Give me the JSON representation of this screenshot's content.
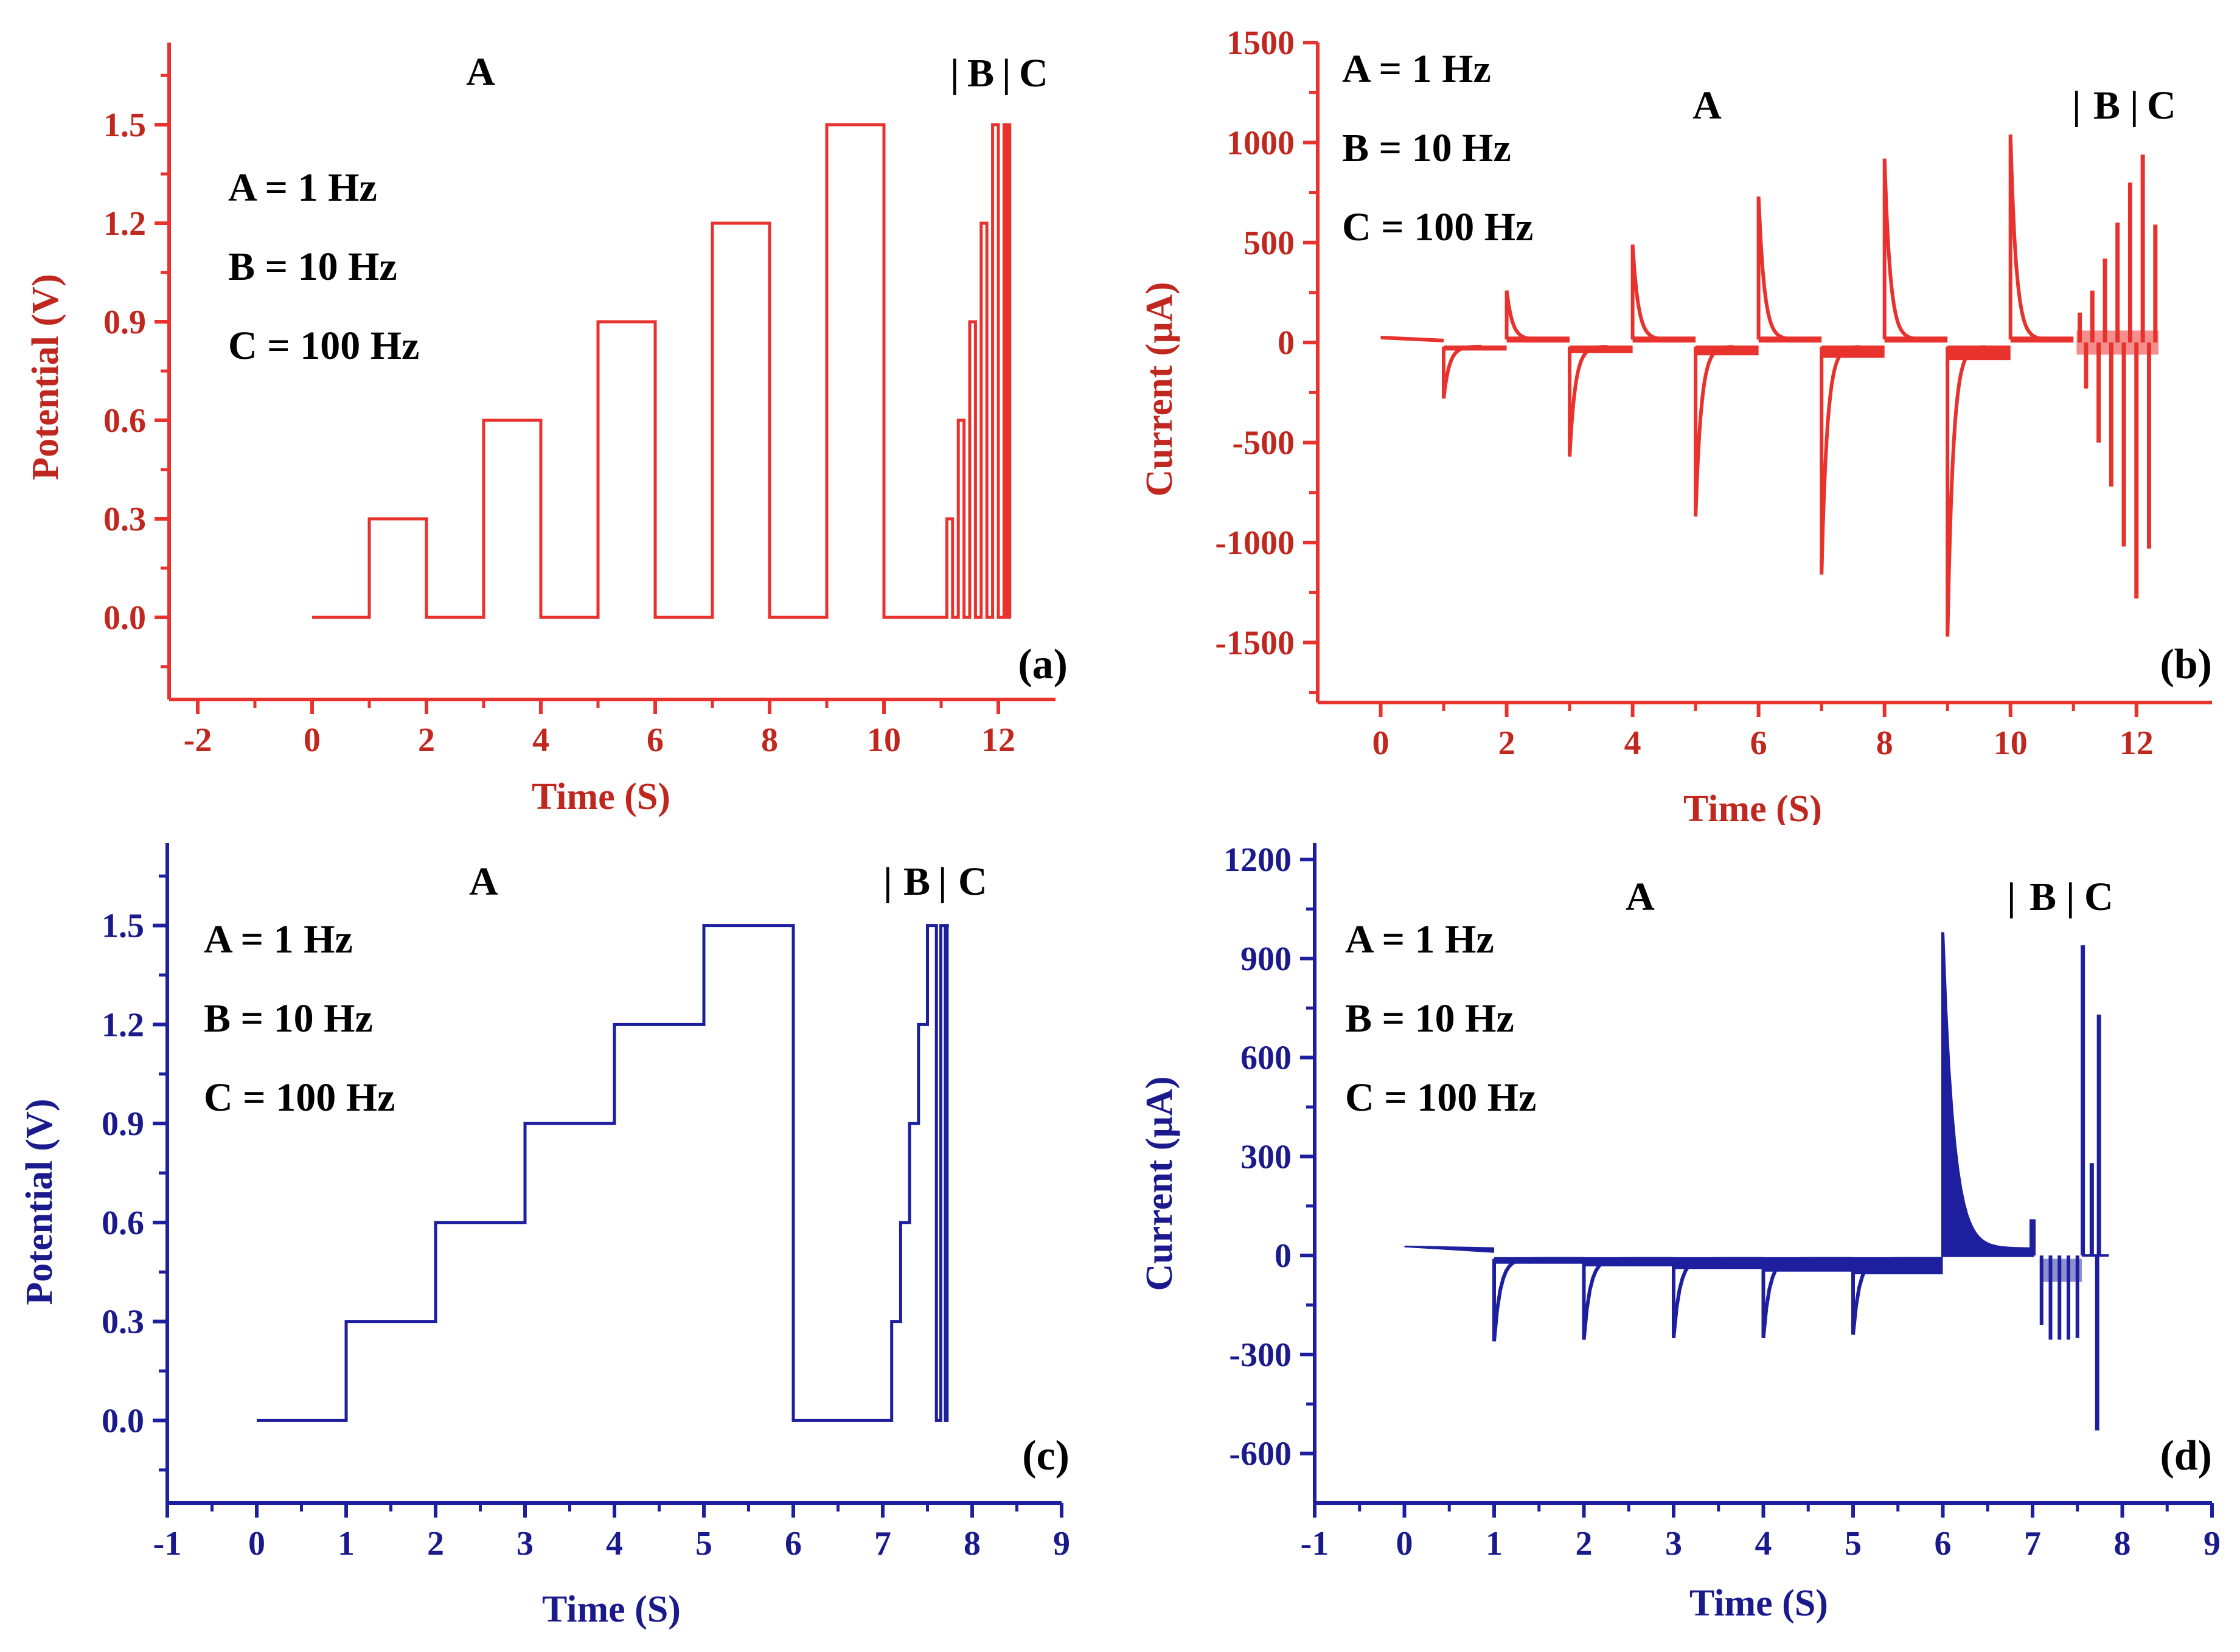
{
  "figure": {
    "colors": {
      "red": "#e8322d",
      "redText": "#c0281f",
      "blue": "#1d1f9e",
      "blueText": "#1a1a8c"
    }
  },
  "chart_data": [
    {
      "id": "a",
      "type": "line",
      "panel_label": "(a)",
      "xlabel": "Time (S)",
      "ylabel": "Potential (V)",
      "xlim": [
        -2.5,
        13
      ],
      "ylim": [
        -0.25,
        1.75
      ],
      "xticks": [
        -2,
        0,
        2,
        4,
        6,
        8,
        10,
        12
      ],
      "xtick_labels": [
        "-2",
        "0",
        "2",
        "4",
        "6",
        "8",
        "10",
        "12"
      ],
      "yticks": [
        0.0,
        0.3,
        0.6,
        0.9,
        1.2,
        1.5
      ],
      "ytick_labels": [
        "0.0",
        "0.3",
        "0.6",
        "0.9",
        "1.2",
        "1.5"
      ],
      "legend_lines": [
        "A = 1 Hz",
        "B = 10 Hz",
        "C = 100 Hz"
      ],
      "region_labels": {
        "a": "A",
        "b": "B",
        "c": "C"
      },
      "series": [
        {
          "name": "Potential",
          "x": [
            0,
            1,
            1,
            2,
            2,
            3,
            3,
            4,
            4,
            5,
            5,
            6,
            6,
            7,
            7,
            8,
            8,
            9,
            9,
            10,
            10,
            11.1,
            11.1,
            11.2,
            11.2,
            11.3,
            11.3,
            11.4,
            11.4,
            11.5,
            11.5,
            11.6,
            11.6,
            11.7,
            11.7,
            11.8,
            11.8,
            11.9,
            11.9,
            12.0,
            12.0,
            12.1,
            12.1,
            12.12,
            12.12,
            12.14,
            12.14,
            12.16,
            12.16,
            12.18,
            12.18,
            12.2,
            12.2,
            12.22
          ],
          "y": [
            0,
            0,
            0.3,
            0.3,
            0,
            0,
            0.6,
            0.6,
            0,
            0,
            0.9,
            0.9,
            0,
            0,
            1.2,
            1.2,
            0,
            0,
            1.5,
            1.5,
            0,
            0,
            0.3,
            0.3,
            0,
            0,
            0.6,
            0.6,
            0,
            0,
            0.9,
            0.9,
            0,
            0,
            1.2,
            1.2,
            0,
            0,
            1.5,
            1.5,
            0,
            0,
            1.5,
            1.5,
            0,
            0,
            1.5,
            1.5,
            0,
            0,
            1.5,
            1.5,
            0,
            0
          ]
        }
      ]
    },
    {
      "id": "b",
      "type": "line",
      "panel_label": "(b)",
      "xlabel": "Time (S)",
      "ylabel": "Current (µA)",
      "xlim": [
        -1.0,
        13.2
      ],
      "ylim": [
        -1800,
        1500
      ],
      "xticks": [
        0,
        2,
        4,
        6,
        8,
        10,
        12
      ],
      "xtick_labels": [
        "0",
        "2",
        "4",
        "6",
        "8",
        "10",
        "12"
      ],
      "yticks": [
        -1500,
        -1000,
        -500,
        0,
        500,
        1000,
        1500
      ],
      "ytick_labels": [
        "-1500",
        "-1000",
        "-500",
        "0",
        "500",
        "1000",
        "1500"
      ],
      "legend_lines": [
        "A = 1 Hz",
        "B = 10 Hz",
        "C = 100 Hz"
      ],
      "region_labels": {
        "a": "A",
        "b": "B",
        "c": "C"
      },
      "spikes": {
        "up_t": [
          2,
          4,
          6,
          8,
          10
        ],
        "up_v": [
          260,
          490,
          730,
          920,
          1040
        ],
        "down_t": [
          1,
          3,
          5,
          7,
          9
        ],
        "down_v": [
          -280,
          -570,
          -870,
          -1160,
          -1470
        ],
        "fast_t": [
          11.1,
          11.2,
          11.3,
          11.4,
          11.5,
          11.6,
          11.7,
          11.8,
          11.9,
          12.0,
          12.1,
          12.2,
          12.3
        ],
        "fast_v": [
          150,
          -230,
          260,
          -500,
          420,
          -720,
          600,
          -1020,
          800,
          -1280,
          940,
          -1030,
          590
        ]
      }
    },
    {
      "id": "c",
      "type": "line",
      "panel_label": "(c)",
      "xlabel": "Time (S)",
      "ylabel": "Potential (V)",
      "xlim": [
        -1,
        9
      ],
      "ylim": [
        -0.25,
        1.75
      ],
      "xticks": [
        -1,
        0,
        1,
        2,
        3,
        4,
        5,
        6,
        7,
        8,
        9
      ],
      "xtick_labels": [
        "-1",
        "0",
        "1",
        "2",
        "3",
        "4",
        "5",
        "6",
        "7",
        "8",
        "9"
      ],
      "yticks": [
        0.0,
        0.3,
        0.6,
        0.9,
        1.2,
        1.5
      ],
      "ytick_labels": [
        "0.0",
        "0.3",
        "0.6",
        "0.9",
        "1.2",
        "1.5"
      ],
      "legend_lines": [
        "A = 1 Hz",
        "B = 10 Hz",
        "C = 100 Hz"
      ],
      "region_labels": {
        "a": "A",
        "b": "B",
        "c": "C"
      },
      "series": [
        {
          "name": "Potential",
          "x": [
            0,
            1,
            1,
            2,
            2,
            3,
            3,
            4,
            4,
            5,
            5,
            6,
            6,
            7.1,
            7.1,
            7.2,
            7.2,
            7.3,
            7.3,
            7.4,
            7.4,
            7.5,
            7.5,
            7.6,
            7.6,
            7.65,
            7.65,
            7.7,
            7.7,
            7.72,
            7.72,
            7.74
          ],
          "y": [
            0,
            0,
            0.3,
            0.3,
            0.6,
            0.6,
            0.9,
            0.9,
            1.2,
            1.2,
            1.5,
            1.5,
            0,
            0,
            0.3,
            0.3,
            0.6,
            0.6,
            0.9,
            0.9,
            1.2,
            1.2,
            1.5,
            1.5,
            0,
            0,
            1.5,
            1.5,
            0,
            0,
            1.5,
            1.5
          ]
        }
      ]
    },
    {
      "id": "d",
      "type": "line",
      "panel_label": "(d)",
      "xlabel": "Time (S)",
      "ylabel": "Current (µA)",
      "xlim": [
        -1,
        9
      ],
      "ylim": [
        -750,
        1250
      ],
      "xticks": [
        -1,
        0,
        1,
        2,
        3,
        4,
        5,
        6,
        7,
        8,
        9
      ],
      "xtick_labels": [
        "-1",
        "0",
        "1",
        "2",
        "3",
        "4",
        "5",
        "6",
        "7",
        "8",
        "9"
      ],
      "yticks": [
        -600,
        -300,
        0,
        300,
        600,
        900,
        1200
      ],
      "ytick_labels": [
        "-600",
        "-300",
        "0",
        "300",
        "600",
        "900",
        "1200"
      ],
      "legend_lines": [
        "A = 1 Hz",
        "B = 10 Hz",
        "C = 100 Hz"
      ],
      "region_labels": {
        "a": "A",
        "b": "B",
        "c": "C"
      },
      "spikes": {
        "down_t": [
          1,
          2,
          3,
          4,
          5
        ],
        "down_v": [
          -260,
          -255,
          -250,
          -250,
          -240
        ],
        "big_up_t": 6,
        "big_up_v": 980,
        "bump_t": 7.0,
        "bump_v": 110,
        "fast_down_t": [
          7.1,
          7.2,
          7.3,
          7.4,
          7.5
        ],
        "fast_down_v": [
          -210,
          -255,
          -255,
          -255,
          -250
        ],
        "fast_up_t": [
          7.56,
          7.66,
          7.74
        ],
        "fast_up_v": [
          940,
          280,
          730
        ],
        "final_down_t": 7.72,
        "final_down_v": -530
      }
    }
  ]
}
